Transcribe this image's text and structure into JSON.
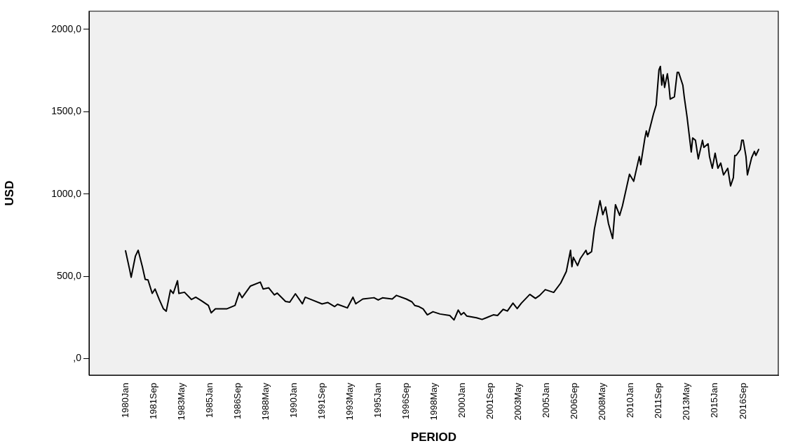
{
  "chart_data": {
    "type": "line",
    "xlabel": "PERIOD",
    "ylabel": "USD",
    "legend": false,
    "grid": false,
    "marker": "none",
    "line_style": "solid",
    "ylim": [
      -100,
      2110
    ],
    "yticks": [
      {
        "value": 0,
        "label": ",0"
      },
      {
        "value": 500,
        "label": "500,0"
      },
      {
        "value": 1000,
        "label": "1000,0"
      },
      {
        "value": 1500,
        "label": "1500,0"
      },
      {
        "value": 2000,
        "label": "2000,0"
      }
    ],
    "xlim": [
      "1977-11",
      "2018-10"
    ],
    "xticks": [
      {
        "value": "1980-01",
        "label": "1980Jan"
      },
      {
        "value": "1981-09",
        "label": "1981Sep"
      },
      {
        "value": "1983-05",
        "label": "1983May"
      },
      {
        "value": "1985-01",
        "label": "1985Jan"
      },
      {
        "value": "1986-09",
        "label": "1986Sep"
      },
      {
        "value": "1988-05",
        "label": "1988May"
      },
      {
        "value": "1990-01",
        "label": "1990Jan"
      },
      {
        "value": "1991-09",
        "label": "1991Sep"
      },
      {
        "value": "1993-05",
        "label": "1993May"
      },
      {
        "value": "1995-01",
        "label": "1995Jan"
      },
      {
        "value": "1996-09",
        "label": "1996Sep"
      },
      {
        "value": "1998-05",
        "label": "1998May"
      },
      {
        "value": "2000-01",
        "label": "2000Jan"
      },
      {
        "value": "2001-09",
        "label": "2001Sep"
      },
      {
        "value": "2003-05",
        "label": "2003May"
      },
      {
        "value": "2005-01",
        "label": "2005Jan"
      },
      {
        "value": "2006-09",
        "label": "2006Sep"
      },
      {
        "value": "2008-05",
        "label": "2008May"
      },
      {
        "value": "2010-01",
        "label": "2010Jan"
      },
      {
        "value": "2011-09",
        "label": "2011Sep"
      },
      {
        "value": "2013-05",
        "label": "2013May"
      },
      {
        "value": "2015-01",
        "label": "2015Jan"
      },
      {
        "value": "2016-09",
        "label": "2016Sep"
      }
    ],
    "series": [
      {
        "color": "#000000",
        "x": [
          "1980-01",
          "1980-04",
          "1980-05",
          "1980-08",
          "1980-10",
          "1981-01",
          "1981-03",
          "1981-05",
          "1981-08",
          "1981-10",
          "1982-01",
          "1982-04",
          "1982-06",
          "1982-09",
          "1982-11",
          "1983-02",
          "1983-03",
          "1983-07",
          "1983-12",
          "1984-03",
          "1984-07",
          "1984-12",
          "1985-02",
          "1985-05",
          "1986-01",
          "1986-07",
          "1986-10",
          "1986-12",
          "1987-06",
          "1988-01",
          "1988-03",
          "1988-07",
          "1988-11",
          "1989-01",
          "1989-07",
          "1989-10",
          "1990-02",
          "1990-07",
          "1990-09",
          "1991-02",
          "1991-09",
          "1992-01",
          "1992-06",
          "1992-08",
          "1993-03",
          "1993-07",
          "1993-09",
          "1994-02",
          "1994-10",
          "1995-01",
          "1995-04",
          "1995-11",
          "1996-02",
          "1996-09",
          "1997-01",
          "1997-03",
          "1997-06",
          "1997-09",
          "1997-12",
          "1998-04",
          "1998-09",
          "1999-04",
          "1999-07",
          "1999-10",
          "1999-12",
          "2000-02",
          "2000-04",
          "2000-11",
          "2001-03",
          "2001-06",
          "2001-11",
          "2002-02",
          "2002-06",
          "2002-09",
          "2003-01",
          "2003-04",
          "2003-07",
          "2004-01",
          "2004-05",
          "2004-08",
          "2004-12",
          "2005-06",
          "2005-11",
          "2006-03",
          "2006-06",
          "2006-07",
          "2006-08",
          "2006-11",
          "2007-01",
          "2007-05",
          "2007-06",
          "2007-09",
          "2007-11",
          "2008-03",
          "2008-05",
          "2008-07",
          "2008-09",
          "2008-12",
          "2009-02",
          "2009-05",
          "2009-07",
          "2009-12",
          "2010-03",
          "2010-07",
          "2010-08",
          "2010-11",
          "2010-12",
          "2011-01",
          "2011-05",
          "2011-07",
          "2011-09",
          "2011-10",
          "2011-11",
          "2011-12",
          "2012-01",
          "2012-03",
          "2012-04",
          "2012-05",
          "2012-08",
          "2012-10",
          "2012-11",
          "2013-02",
          "2013-03",
          "2013-05",
          "2013-08",
          "2013-09",
          "2013-11",
          "2014-01",
          "2014-04",
          "2014-05",
          "2014-08",
          "2014-09",
          "2014-11",
          "2015-01",
          "2015-03",
          "2015-05",
          "2015-07",
          "2015-10",
          "2015-12",
          "2016-02",
          "2016-03",
          "2016-04",
          "2016-07",
          "2016-08",
          "2016-09",
          "2016-11",
          "2016-12",
          "2017-03",
          "2017-05",
          "2017-06",
          "2017-08"
        ],
        "values": [
          655,
          537,
          494,
          622,
          658,
          558,
          481,
          478,
          396,
          423,
          359,
          302,
          288,
          417,
          396,
          473,
          396,
          403,
          359,
          373,
          352,
          323,
          278,
          302,
          302,
          323,
          401,
          370,
          441,
          465,
          423,
          430,
          387,
          398,
          347,
          343,
          394,
          333,
          373,
          356,
          332,
          341,
          316,
          330,
          308,
          373,
          333,
          362,
          370,
          356,
          369,
          362,
          384,
          362,
          345,
          323,
          316,
          302,
          266,
          285,
          271,
          262,
          235,
          295,
          266,
          280,
          259,
          248,
          238,
          248,
          266,
          262,
          299,
          289,
          337,
          304,
          337,
          390,
          366,
          384,
          419,
          402,
          459,
          529,
          658,
          558,
          615,
          565,
          608,
          658,
          632,
          650,
          786,
          959,
          874,
          921,
          821,
          729,
          935,
          870,
          928,
          1120,
          1077,
          1227,
          1178,
          1341,
          1383,
          1348,
          1483,
          1540,
          1754,
          1775,
          1661,
          1725,
          1647,
          1730,
          1666,
          1576,
          1590,
          1739,
          1739,
          1661,
          1590,
          1469,
          1255,
          1340,
          1326,
          1213,
          1326,
          1283,
          1305,
          1227,
          1156,
          1248,
          1156,
          1188,
          1116,
          1156,
          1049,
          1099,
          1234,
          1234,
          1270,
          1327,
          1327,
          1227,
          1116,
          1220,
          1259,
          1234,
          1270
        ]
      }
    ]
  }
}
